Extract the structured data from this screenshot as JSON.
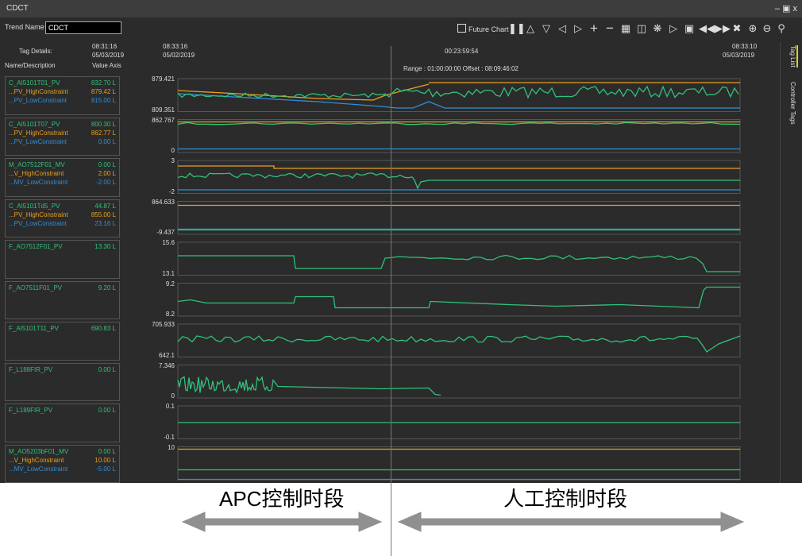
{
  "window": {
    "title": "CDCT",
    "controls": "– ▣ x"
  },
  "toolbar": {
    "trend_name_label": "Trend Name",
    "trend_name_value": "CDCT",
    "future_chart_label": "Future Chart"
  },
  "header": {
    "tag_details": "Tag Details:",
    "name_desc": "Name/Description",
    "value_axis": "Value  Axis",
    "start_time": "08:31:16",
    "start_date": "05/03/2019",
    "plot_start_time": "08:33:16",
    "plot_start_date": "05/02/2019",
    "cursor_time": "00:23:59:54",
    "range_text": "Range : 01:00:00:00   Offset : 08:09:46:02",
    "end_time": "08:33:10",
    "end_date": "05/03/2019"
  },
  "side_tabs": {
    "tag_list": "Tag List",
    "controller_tags": "Controller Tags"
  },
  "colors": {
    "pv": "#2fc27a",
    "high": "#e6a020",
    "low": "#2f8fd8",
    "bg": "#2b2b2b"
  },
  "trends": [
    {
      "tags": [
        {
          "name": "C_AI5101T01_PV",
          "value": "832.70 L",
          "color": "pv"
        },
        {
          "name": "...PV_HighConstraint",
          "value": "879.42 L",
          "color": "high"
        },
        {
          "name": "...PV_LowConstraint",
          "value": "815.00 L",
          "color": "low"
        }
      ],
      "ymax": "879.421",
      "ymin": "809.351"
    },
    {
      "tags": [
        {
          "name": "C_AI5101T07_PV",
          "value": "800.30  L",
          "color": "pv"
        },
        {
          "name": "...PV_HighConstraint",
          "value": "862.77  L",
          "color": "high"
        },
        {
          "name": "...PV_LowConstraint",
          "value": "0.00    L",
          "color": "low"
        }
      ],
      "ymax": "862.767",
      "ymin": "0"
    },
    {
      "tags": [
        {
          "name": "M_AO7512F01_MV",
          "value": "0.00  L",
          "color": "pv"
        },
        {
          "name": "...V_HighConstraint",
          "value": "2.00  L",
          "color": "high"
        },
        {
          "name": "...MV_LowConstraint",
          "value": "-2.00 L",
          "color": "low"
        }
      ],
      "ymax": "3",
      "ymin": "-2"
    },
    {
      "tags": [
        {
          "name": "C_AI5101Td5_PV",
          "value": "44.87   L",
          "color": "pv"
        },
        {
          "name": "...PV_HighConstraint",
          "value": "855.00  L",
          "color": "high"
        },
        {
          "name": "...PV_LowConstraint",
          "value": "23.16   L",
          "color": "low"
        }
      ],
      "ymax": "864.633",
      "ymin": "-9.437"
    },
    {
      "tags": [
        {
          "name": "F_AO7512F01_PV",
          "value": "13.30 L",
          "color": "pv"
        }
      ],
      "ymax": "15.6",
      "ymin": "13.1"
    },
    {
      "tags": [
        {
          "name": "F_AO7511F01_PV",
          "value": "9.20  L",
          "color": "pv"
        }
      ],
      "ymax": "9.2",
      "ymin": "8.2"
    },
    {
      "tags": [
        {
          "name": "F_AI5101T11_PV",
          "value": "690.83  L",
          "color": "pv"
        }
      ],
      "ymax": "705.933",
      "ymin": "642.1"
    },
    {
      "tags": [
        {
          "name": "F_L188FIR_PV",
          "value": "0.00 L",
          "color": "pv"
        }
      ],
      "ymax": "7.346",
      "ymin": "0"
    },
    {
      "tags": [
        {
          "name": "F_L189FIR_PV",
          "value": "0.00 L",
          "color": "pv"
        }
      ],
      "ymax": "0.1",
      "ymin": "-0.1"
    },
    {
      "tags": [
        {
          "name": "M_AO5203bF01_MV",
          "value": "0.00  L",
          "color": "pv"
        },
        {
          "name": "...V_HighConstraint",
          "value": "10.00 L",
          "color": "high"
        },
        {
          "name": "...MV_LowConstraint",
          "value": "-5.00 L",
          "color": "low"
        }
      ],
      "ymax": "10",
      "ymin": ""
    }
  ],
  "annotations": {
    "left": "APC控制时段",
    "right": "人工控制时段"
  }
}
